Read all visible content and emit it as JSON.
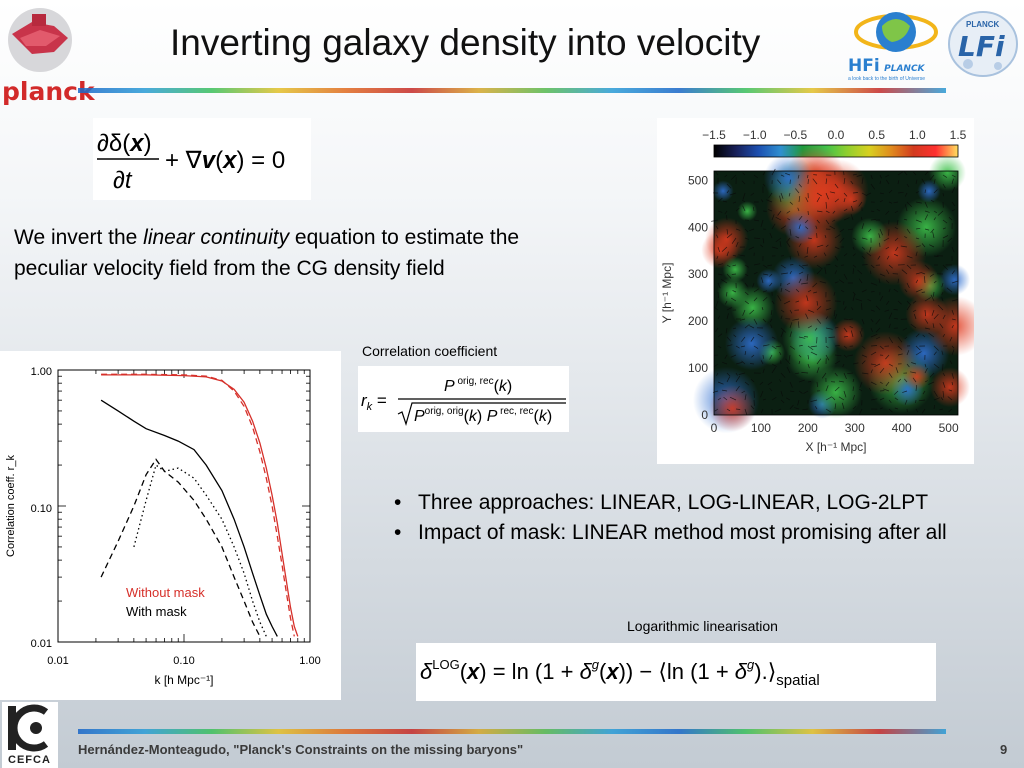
{
  "title": "Inverting galaxy density into velocity",
  "logos": {
    "planck": "planck",
    "hfi_sub": "a look back to the birth of Universe",
    "hfi": "HFi",
    "hfi_planck": "PLANCK",
    "lfi": "LFi",
    "lfi_planck": "PLANCK",
    "cefca": "CEFCA"
  },
  "equations": {
    "continuity": "∂δ(x)/∂t + ∇v(x) = 0",
    "correlation_caption": "Correlation coefficient",
    "correlation": "r_k = P^{orig,rec}(k) / sqrt(P^{orig,orig}(k) P^{rec,rec}(k))",
    "log_caption": "Logarithmic linearisation",
    "log": "δ^LOG(x) = ln(1 + δ^g(x)) − ⟨ln(1 + δ^g).⟩_spatial"
  },
  "intro": {
    "pre": "We invert the ",
    "em": "linear continuity",
    "post": " equation to estimate the peculiar velocity field from the CG density field"
  },
  "bullets": [
    "Three approaches: LINEAR, LOG-LINEAR, LOG-2LPT",
    "Impact of mask: LINEAR method most promising after all"
  ],
  "footer": {
    "credit": "Hernández-Monteagudo, \"Planck's Constraints on the missing baryons\"",
    "page": "9"
  },
  "colors": {
    "planck_red": "#d22a2a",
    "without_mask": "#d6302a",
    "with_mask": "#000000"
  },
  "chart_data": [
    {
      "type": "line",
      "xlabel": "k [h Mpc⁻¹]",
      "ylabel": "Correlation coeff. r_k",
      "x_scale": "log",
      "y_scale": "log",
      "xlim": [
        0.01,
        1.0
      ],
      "ylim": [
        0.01,
        1.0
      ],
      "xticks": [
        "0.01",
        "0.10",
        "1.00"
      ],
      "yticks": [
        "0.01",
        "0.10",
        "1.00"
      ],
      "legend": [
        "Without mask",
        "With mask"
      ],
      "legend_position": "bottom-left",
      "series": [
        {
          "name": "Without mask",
          "color": "#d6302a",
          "style": "solid",
          "x": [
            0.022,
            0.05,
            0.1,
            0.15,
            0.2,
            0.25,
            0.3,
            0.35,
            0.4,
            0.45,
            0.5,
            0.55,
            0.6,
            0.65,
            0.7,
            0.75,
            0.8
          ],
          "y": [
            0.92,
            0.92,
            0.91,
            0.89,
            0.83,
            0.72,
            0.58,
            0.42,
            0.29,
            0.19,
            0.12,
            0.075,
            0.045,
            0.028,
            0.018,
            0.013,
            0.011
          ]
        },
        {
          "name": "Without mask",
          "color": "#d6302a",
          "style": "dashed",
          "x": [
            0.022,
            0.05,
            0.1,
            0.15,
            0.2,
            0.25,
            0.3,
            0.35,
            0.4,
            0.45,
            0.5,
            0.55,
            0.6,
            0.65,
            0.7,
            0.75
          ],
          "y": [
            0.93,
            0.93,
            0.92,
            0.9,
            0.84,
            0.7,
            0.54,
            0.38,
            0.25,
            0.16,
            0.1,
            0.06,
            0.037,
            0.023,
            0.015,
            0.011
          ]
        },
        {
          "name": "With mask",
          "color": "#000000",
          "style": "solid",
          "x": [
            0.022,
            0.03,
            0.04,
            0.05,
            0.07,
            0.09,
            0.12,
            0.15,
            0.2,
            0.25,
            0.3,
            0.35,
            0.4,
            0.45,
            0.5,
            0.55
          ],
          "y": [
            0.6,
            0.5,
            0.42,
            0.37,
            0.33,
            0.3,
            0.26,
            0.2,
            0.13,
            0.08,
            0.05,
            0.032,
            0.022,
            0.016,
            0.013,
            0.011
          ]
        },
        {
          "name": "With mask",
          "color": "#000000",
          "style": "dotted",
          "x": [
            0.04,
            0.05,
            0.06,
            0.07,
            0.09,
            0.12,
            0.15,
            0.2,
            0.25,
            0.3,
            0.35,
            0.4,
            0.45
          ],
          "y": [
            0.05,
            0.11,
            0.2,
            0.18,
            0.19,
            0.16,
            0.12,
            0.08,
            0.05,
            0.032,
            0.02,
            0.014,
            0.011
          ]
        },
        {
          "name": "With mask",
          "color": "#000000",
          "style": "dashed",
          "x": [
            0.022,
            0.03,
            0.04,
            0.05,
            0.06,
            0.07,
            0.09,
            0.12,
            0.15,
            0.2,
            0.25,
            0.3,
            0.35,
            0.4
          ],
          "y": [
            0.03,
            0.055,
            0.1,
            0.17,
            0.22,
            0.18,
            0.15,
            0.11,
            0.08,
            0.05,
            0.03,
            0.02,
            0.014,
            0.011
          ]
        }
      ]
    },
    {
      "type": "heatmap",
      "xlabel": "X [h⁻¹ Mpc]",
      "ylabel": "Y [h⁻¹ Mpc]",
      "xlim": [
        0,
        520
      ],
      "ylim": [
        0,
        520
      ],
      "xticks": [
        "0",
        "100",
        "200",
        "300",
        "400",
        "500"
      ],
      "yticks": [
        "0",
        "100",
        "200",
        "300",
        "400",
        "500"
      ],
      "colorbar_ticks": [
        "−1.5",
        "−1.0",
        "−0.5",
        "0.0",
        "0.5",
        "1.0",
        "1.5"
      ],
      "colorbar_range": [
        -1.5,
        1.5
      ],
      "colorbar_colors": [
        "#000000",
        "#18205a",
        "#1c4fb0",
        "#2f8fd0",
        "#1f9a3c",
        "#3ec24b",
        "#8fcf2f",
        "#d8d020",
        "#e08a1e",
        "#d23a1e",
        "#ff3030",
        "#ffe060"
      ]
    }
  ]
}
